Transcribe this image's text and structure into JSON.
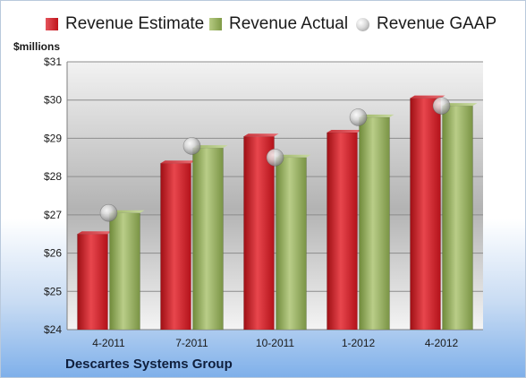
{
  "chart_data": {
    "type": "bar",
    "title": "",
    "xlabel": "",
    "ylabel": "$millions",
    "categories": [
      "4-2011",
      "7-2011",
      "10-2011",
      "1-2012",
      "4-2012"
    ],
    "series": [
      {
        "name": "Revenue Estimate",
        "type": "bar",
        "color": "#c8161d",
        "values": [
          26.5,
          28.35,
          29.05,
          29.15,
          30.05
        ]
      },
      {
        "name": "Revenue Actual",
        "type": "bar",
        "color": "#8aa353",
        "values": [
          27.05,
          28.75,
          28.5,
          29.55,
          29.85
        ]
      },
      {
        "name": "Revenue GAAP",
        "type": "scatter",
        "color": "#bfbfbf",
        "values": [
          27.05,
          28.8,
          28.5,
          29.55,
          29.85
        ]
      }
    ],
    "ylim": [
      24,
      31
    ],
    "yticks": [
      "$24",
      "$25",
      "$26",
      "$27",
      "$28",
      "$29",
      "$30",
      "$31"
    ],
    "grid": true,
    "legend": "top"
  },
  "footer": {
    "company": "Descartes Systems Group"
  }
}
